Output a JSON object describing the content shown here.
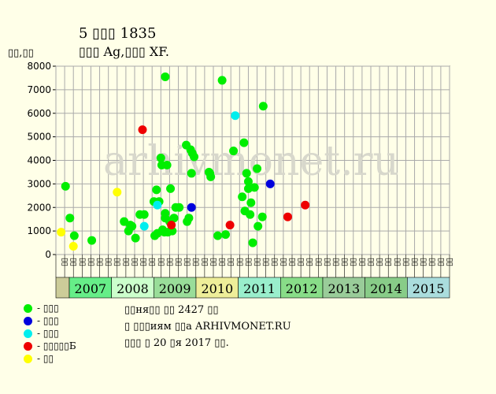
{
  "title": "5 ▯▯▯ 1835",
  "subtitle": "▯▯▯ Ag,▯▯▯ XF.",
  "ylabel": "▯▯,▯▯",
  "watermark": "arhivmonet.ru",
  "legend": [
    {
      "label": "- ▯▯▯",
      "color": "#00ee00"
    },
    {
      "label": "- ▯▯▯",
      "color": "#0000dd"
    },
    {
      "label": "- ▯▯▯",
      "color": "#00eeee"
    },
    {
      "label": "- ▯▯▯▯▯Б",
      "color": "#ee0000"
    },
    {
      "label": "- ▯▯",
      "color": "#ffff00"
    }
  ],
  "info": {
    "line1": "▯▯ня▯▯ ▯▯ 2427 ▯▯",
    "line2": "▯ ▯▯▯иям ▯▯а ARHIVMONET.RU",
    "line3": "▯▯▯ ▯ 20 ▯я 2017 ▯▯."
  },
  "chart_data": {
    "type": "scatter",
    "ylim": [
      0,
      8000
    ],
    "yticks": [
      0,
      1000,
      2000,
      3000,
      4000,
      5000,
      6000,
      7000,
      8000
    ],
    "xticks": [
      "▯▯",
      "▯▯",
      "▯▯",
      "▯▯",
      "▯▯",
      "▯▯",
      "▯▯",
      "▯▯",
      "▯▯",
      "▯▯",
      "▯▯",
      "▯▯",
      "▯▯",
      "▯▯",
      "▯▯",
      "▯▯",
      "▯▯",
      "▯▯",
      "▯▯",
      "▯▯",
      "▯▯",
      "▯▯",
      "▯▯",
      "▯▯",
      "▯▯",
      "▯▯",
      "▯▯",
      "▯▯",
      "▯▯",
      "▯▯",
      "▯▯",
      "▯▯",
      "▯▯",
      "▯▯",
      "▯▯",
      "▯▯",
      "▯▯",
      "▯▯",
      "▯▯",
      "▯▯",
      "▯▯",
      "▯▯",
      "▯▯",
      "▯▯",
      "▯▯"
    ],
    "years": [
      {
        "label": "2007",
        "color": "#66ee88"
      },
      {
        "label": "2008",
        "color": "#ccffcc"
      },
      {
        "label": "2009",
        "color": "#99dd99"
      },
      {
        "label": "2010",
        "color": "#eeee99"
      },
      {
        "label": "2011",
        "color": "#99eecc"
      },
      {
        "label": "2012",
        "color": "#88dd88"
      },
      {
        "label": "2013",
        "color": "#99cc99"
      },
      {
        "label": "2014",
        "color": "#88cc88"
      },
      {
        "label": "2015",
        "color": "#aadddd"
      }
    ],
    "grid": true,
    "series": [
      {
        "color": "#00ee00",
        "points": [
          [
            0.6,
            2900
          ],
          [
            1.1,
            1550
          ],
          [
            1.6,
            800
          ],
          [
            3.6,
            600
          ],
          [
            7.3,
            1400
          ],
          [
            7.8,
            1000
          ],
          [
            8.0,
            1250
          ],
          [
            8.2,
            1200
          ],
          [
            8.6,
            700
          ],
          [
            9.1,
            1700
          ],
          [
            9.6,
            1700
          ],
          [
            10.7,
            2250
          ],
          [
            10.8,
            800
          ],
          [
            11.0,
            2750
          ],
          [
            11.1,
            900
          ],
          [
            11.3,
            2250
          ],
          [
            11.5,
            4100
          ],
          [
            11.6,
            3800
          ],
          [
            11.7,
            1050
          ],
          [
            11.9,
            950
          ],
          [
            12.0,
            7550
          ],
          [
            12.0,
            1750
          ],
          [
            12.0,
            1550
          ],
          [
            12.2,
            3800
          ],
          [
            12.3,
            950
          ],
          [
            12.5,
            1400
          ],
          [
            12.6,
            2800
          ],
          [
            12.8,
            1000
          ],
          [
            13.0,
            1550
          ],
          [
            13.2,
            2000
          ],
          [
            13.6,
            2000
          ],
          [
            14.4,
            4650
          ],
          [
            14.5,
            1400
          ],
          [
            14.7,
            1550
          ],
          [
            14.9,
            4450
          ],
          [
            15.0,
            3450
          ],
          [
            15.1,
            4300
          ],
          [
            15.3,
            4150
          ],
          [
            17.0,
            3500
          ],
          [
            17.1,
            3450
          ],
          [
            17.2,
            3300
          ],
          [
            18.0,
            800
          ],
          [
            18.5,
            7400
          ],
          [
            18.9,
            850
          ],
          [
            19.8,
            4400
          ],
          [
            20.8,
            2450
          ],
          [
            21.0,
            4750
          ],
          [
            21.1,
            1850
          ],
          [
            21.3,
            3450
          ],
          [
            21.5,
            3100
          ],
          [
            21.5,
            2800
          ],
          [
            21.7,
            1700
          ],
          [
            21.8,
            2200
          ],
          [
            22.0,
            500
          ],
          [
            22.2,
            2850
          ],
          [
            22.5,
            3650
          ],
          [
            22.6,
            1200
          ],
          [
            23.1,
            1600
          ],
          [
            23.2,
            6300
          ]
        ]
      },
      {
        "color": "#0000dd",
        "points": [
          [
            15.0,
            2000
          ],
          [
            24.0,
            3000
          ]
        ]
      },
      {
        "color": "#00eeee",
        "points": [
          [
            9.6,
            1200
          ],
          [
            11.1,
            2100
          ],
          [
            20.0,
            5900
          ]
        ]
      },
      {
        "color": "#ee0000",
        "points": [
          [
            9.4,
            5300
          ],
          [
            12.7,
            1250
          ],
          [
            19.4,
            1250
          ],
          [
            26.0,
            1600
          ],
          [
            28.0,
            2100
          ]
        ]
      },
      {
        "color": "#ffff00",
        "points": [
          [
            0.1,
            950
          ],
          [
            1.5,
            350
          ],
          [
            6.5,
            2650
          ]
        ]
      }
    ]
  }
}
